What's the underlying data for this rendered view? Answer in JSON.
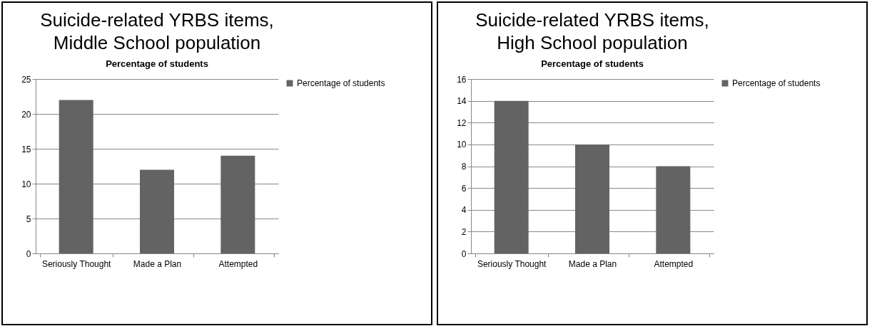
{
  "chart_data": [
    {
      "type": "bar",
      "title": "Suicide-related YRBS items,\nMiddle School population",
      "subtitle": "Percentage of students",
      "categories": [
        "Seriously Thought",
        "Made a Plan",
        "Attempted"
      ],
      "series": [
        {
          "name": "Percentage of students",
          "color": "#636363",
          "values": [
            22,
            12,
            14
          ]
        }
      ],
      "ylim": [
        0,
        25
      ],
      "yticks": [
        0,
        5,
        10,
        15,
        20,
        25
      ],
      "grid": "y",
      "legend": "right"
    },
    {
      "type": "bar",
      "title": "Suicide-related YRBS items,\nHigh School population",
      "subtitle": "Percentage of students",
      "categories": [
        "Seriously Thought",
        "Made a Plan",
        "Attempted"
      ],
      "series": [
        {
          "name": "Percentage of students",
          "color": "#636363",
          "values": [
            14,
            10,
            8
          ]
        }
      ],
      "ylim": [
        0,
        16
      ],
      "yticks": [
        0,
        2,
        4,
        6,
        8,
        10,
        12,
        14,
        16
      ],
      "grid": "y",
      "legend": "right"
    }
  ]
}
